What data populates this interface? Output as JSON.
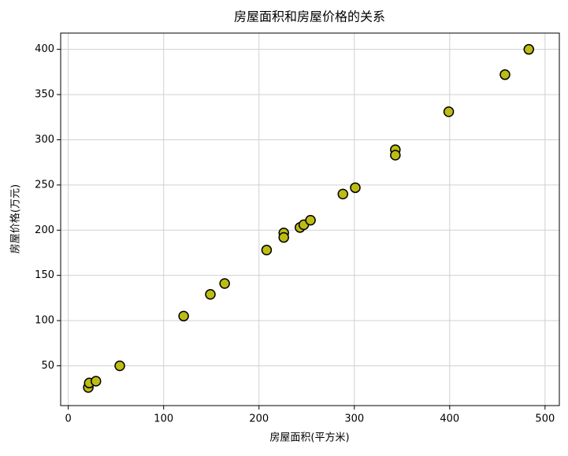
{
  "chart_data": {
    "type": "scatter",
    "title": "房屋面积和房屋价格的关系",
    "xlabel": "房屋面积(平方米)",
    "ylabel": "房屋价格(万元)",
    "x": [
      21,
      22,
      29,
      54,
      121,
      149,
      164,
      208,
      226,
      226,
      243,
      247,
      254,
      288,
      301,
      343,
      343,
      399,
      458,
      483
    ],
    "y": [
      26,
      31,
      33,
      50,
      105,
      129,
      141,
      178,
      197,
      192,
      203,
      206,
      211,
      240,
      247,
      289,
      283,
      331,
      372,
      400
    ],
    "color": "#bcbc14",
    "xlim": [
      -8,
      515
    ],
    "ylim": [
      6,
      418
    ],
    "xticks": [
      0,
      100,
      200,
      300,
      400,
      500
    ],
    "yticks": [
      50,
      100,
      150,
      200,
      250,
      300,
      350,
      400
    ],
    "grid": true
  }
}
